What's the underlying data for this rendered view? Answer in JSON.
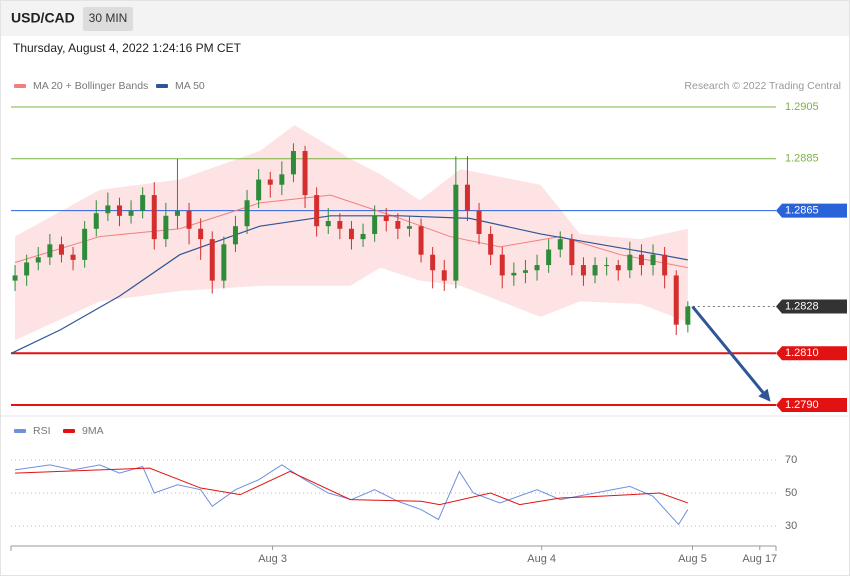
{
  "header": {
    "symbol": "USD/CAD",
    "interval": "30 MIN",
    "timestamp": "Thursday, August 4, 2022 1:24:16 PM CET"
  },
  "chart_data": [
    {
      "type": "candlestick",
      "credit": "Research © 2022 Trading Central",
      "xlim": [
        -0.35,
        65.6
      ],
      "ylim": [
        1.2786,
        1.291
      ],
      "up_color": "#2e8b3a",
      "down_color": "#d32f2f",
      "open": [
        1.2838,
        1.284,
        1.2845,
        1.2847,
        1.2852,
        1.2848,
        1.2846,
        1.2858,
        1.2864,
        1.2867,
        1.2863,
        1.2865,
        1.2871,
        1.2854,
        1.2863,
        1.2865,
        1.2858,
        1.2854,
        1.2838,
        1.2852,
        1.2859,
        1.2869,
        1.2877,
        1.2875,
        1.2879,
        1.2888,
        1.2871,
        1.2859,
        1.2861,
        1.2858,
        1.2854,
        1.2856,
        1.2863,
        1.2861,
        1.2858,
        1.2859,
        1.2848,
        1.2842,
        1.2838,
        1.2875,
        1.2865,
        1.2856,
        1.2848,
        1.284,
        1.2841,
        1.2842,
        1.2844,
        1.285,
        1.2854,
        1.2844,
        1.284,
        1.2844,
        1.2844,
        1.2842,
        1.2848,
        1.2844,
        1.2848,
        1.284,
        1.2821
      ],
      "high": [
        1.2844,
        1.2848,
        1.2851,
        1.2856,
        1.2855,
        1.2851,
        1.2861,
        1.2869,
        1.2872,
        1.287,
        1.2869,
        1.2874,
        1.2876,
        1.2868,
        1.2885,
        1.2868,
        1.2862,
        1.2857,
        1.2855,
        1.2863,
        1.2873,
        1.2881,
        1.288,
        1.2884,
        1.2891,
        1.289,
        1.2874,
        1.2866,
        1.2864,
        1.2861,
        1.286,
        1.2867,
        1.2866,
        1.2864,
        1.2863,
        1.2862,
        1.2851,
        1.2846,
        1.2886,
        1.2886,
        1.2868,
        1.2859,
        1.2851,
        1.2845,
        1.2846,
        1.2848,
        1.2854,
        1.2857,
        1.2856,
        1.2847,
        1.2847,
        1.2847,
        1.2846,
        1.2853,
        1.2852,
        1.2852,
        1.2851,
        1.2842,
        1.283
      ],
      "low": [
        1.2834,
        1.2836,
        1.2842,
        1.2844,
        1.2845,
        1.2842,
        1.2843,
        1.2855,
        1.2861,
        1.2859,
        1.286,
        1.2862,
        1.285,
        1.2851,
        1.2858,
        1.2852,
        1.2846,
        1.2833,
        1.2835,
        1.2849,
        1.2856,
        1.2866,
        1.287,
        1.2871,
        1.2876,
        1.2866,
        1.2855,
        1.2856,
        1.2854,
        1.285,
        1.2851,
        1.2853,
        1.2857,
        1.2854,
        1.2855,
        1.2845,
        1.2835,
        1.2834,
        1.2835,
        1.2861,
        1.2852,
        1.2844,
        1.2835,
        1.2836,
        1.2837,
        1.2838,
        1.2841,
        1.2847,
        1.284,
        1.2836,
        1.2837,
        1.284,
        1.2838,
        1.2839,
        1.284,
        1.284,
        1.2835,
        1.2817,
        1.2818
      ],
      "close": [
        1.284,
        1.2845,
        1.2847,
        1.2852,
        1.2848,
        1.2846,
        1.2858,
        1.2864,
        1.2867,
        1.2863,
        1.2865,
        1.2871,
        1.2854,
        1.2863,
        1.2865,
        1.2858,
        1.2854,
        1.2838,
        1.2852,
        1.2859,
        1.2869,
        1.2877,
        1.2875,
        1.2879,
        1.2888,
        1.2871,
        1.2859,
        1.2861,
        1.2858,
        1.2854,
        1.2856,
        1.2863,
        1.2861,
        1.2858,
        1.2859,
        1.2848,
        1.2842,
        1.2838,
        1.2875,
        1.2865,
        1.2856,
        1.2848,
        1.284,
        1.2841,
        1.2842,
        1.2844,
        1.285,
        1.2854,
        1.2844,
        1.284,
        1.2844,
        1.2844,
        1.2842,
        1.2848,
        1.2844,
        1.2848,
        1.284,
        1.2821,
        1.2828
      ],
      "series": [
        {
          "name": "MA 20 + Bollinger Bands",
          "color": "#f08080",
          "x": [
            0,
            7.3,
            14.2,
            21.1,
            27.2,
            33.2,
            37.5,
            41.8,
            47,
            52.2,
            58
          ],
          "values": [
            1.2845,
            1.2855,
            1.2858,
            1.2868,
            1.2871,
            1.2862,
            1.2855,
            1.2851,
            1.2855,
            1.2848,
            1.2843
          ]
        },
        {
          "name": "MA 50",
          "color": "#2f5597",
          "x": [
            -0.3,
            3.9,
            9,
            14.2,
            21.1,
            27.2,
            33.2,
            39.2,
            45.3,
            50.4,
            55.6,
            58
          ],
          "values": [
            1.281,
            1.2819,
            1.2832,
            1.2848,
            1.2859,
            1.2863,
            1.2863,
            1.2862,
            1.2856,
            1.2852,
            1.2848,
            1.2846
          ]
        }
      ],
      "bands": {
        "color": "#fde3e3",
        "x": [
          0,
          7.3,
          14.2,
          21.1,
          24.1,
          28.9,
          31.5,
          34.9,
          38.4,
          45.3,
          48.7,
          53.9,
          58
        ],
        "upper": [
          1.2855,
          1.2873,
          1.2877,
          1.2888,
          1.2898,
          1.2885,
          1.2879,
          1.2869,
          1.2881,
          1.2875,
          1.2856,
          1.2854,
          1.2858
        ],
        "lower": [
          1.2815,
          1.283,
          1.2834,
          1.2836,
          1.2836,
          1.2836,
          1.2843,
          1.2838,
          1.2836,
          1.2824,
          1.283,
          1.2829,
          1.2822
        ]
      },
      "levels": [
        {
          "value": 1.2905,
          "label": "1.2905",
          "color": "#7cb342",
          "tag": false
        },
        {
          "value": 1.2885,
          "label": "1.2885",
          "color": "#7cb342",
          "tag": false
        },
        {
          "value": 1.2865,
          "label": "1.2865",
          "color": "#2962d9",
          "tag": true
        },
        {
          "value": 1.2828,
          "label": "1.2828",
          "color": "#333333",
          "tag": true,
          "dashed": true
        },
        {
          "value": 1.281,
          "label": "1.2810",
          "color": "#e31212",
          "tag": true,
          "bold": true
        },
        {
          "value": 1.279,
          "label": "1.2790",
          "color": "#e31212",
          "tag": true,
          "bold": true
        }
      ],
      "arrow": {
        "color": "#2f5597",
        "x": [
          58.4,
          65
        ],
        "values": [
          1.2828,
          1.2792
        ]
      }
    },
    {
      "type": "line",
      "xlim": [
        -0.35,
        65.6
      ],
      "ylim": [
        21,
        79
      ],
      "yticks": [
        30,
        50,
        70
      ],
      "grid": true,
      "xticks": [
        {
          "value": 22.2,
          "label": "Aug 3"
        },
        {
          "value": 45.4,
          "label": "Aug 4"
        },
        {
          "value": 58.4,
          "label": "Aug 5"
        },
        {
          "value": 64.2,
          "label": "Aug 17"
        }
      ],
      "series": [
        {
          "name": "RSI",
          "color": "#6f8fe0",
          "x": [
            0,
            3,
            5,
            7.3,
            9,
            11,
            12,
            14,
            16,
            17,
            19,
            21,
            23,
            25,
            27,
            29,
            31,
            33,
            35,
            36.5,
            38.3,
            39.5,
            41.8,
            45,
            47,
            50,
            53,
            55,
            57.2,
            58
          ],
          "values": [
            64,
            67,
            64,
            67,
            62,
            66,
            50,
            55,
            52,
            42,
            52,
            58,
            67,
            58,
            50,
            46,
            52,
            45,
            40,
            34,
            63,
            50,
            44,
            52,
            46,
            50,
            54,
            48,
            31,
            40
          ]
        },
        {
          "name": "9MA",
          "color": "#e31212",
          "x": [
            0,
            7.3,
            11.6,
            16,
            19.4,
            23.7,
            28.9,
            35,
            36.6,
            41,
            43.5,
            47,
            50.4,
            55.6,
            58
          ],
          "values": [
            62,
            64,
            65,
            53,
            49,
            63,
            46,
            45,
            43,
            50,
            43,
            47,
            48,
            50,
            44
          ]
        }
      ]
    }
  ]
}
